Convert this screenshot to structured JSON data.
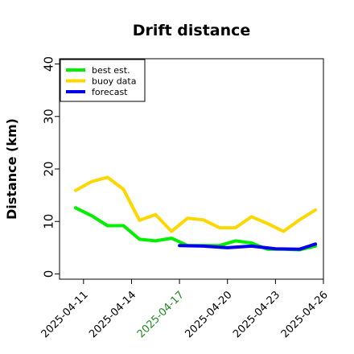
{
  "chart_data": {
    "type": "line",
    "title": "Drift distance",
    "ylabel": "Distance (km)",
    "xlabel": "",
    "ylim": [
      -1,
      41
    ],
    "yticks": [
      0,
      10,
      20,
      30,
      40
    ],
    "xlim": [
      "2025-04-09T12:00",
      "2025-04-26T00:00"
    ],
    "xticks": [
      "2025-04-11",
      "2025-04-14",
      "2025-04-17",
      "2025-04-20",
      "2025-04-23",
      "2025-04-26"
    ],
    "highlighted_xtick": "2025-04-17",
    "highlight_color": "#228B22",
    "grid": false,
    "legend_position": "top-left",
    "series": [
      {
        "name": "best est.",
        "color": "#00ee00",
        "x": [
          "2025-04-10T12:00",
          "2025-04-11T12:00",
          "2025-04-12T12:00",
          "2025-04-13T12:00",
          "2025-04-14T12:00",
          "2025-04-15T12:00",
          "2025-04-16T12:00",
          "2025-04-17T12:00",
          "2025-04-18T12:00",
          "2025-04-19T12:00",
          "2025-04-20T12:00",
          "2025-04-21T12:00",
          "2025-04-22T12:00",
          "2025-04-23T12:00",
          "2025-04-24T12:00",
          "2025-04-25T12:00"
        ],
        "y": [
          12.6,
          11.1,
          9.2,
          9.2,
          6.6,
          6.3,
          6.8,
          5.4,
          5.4,
          5.4,
          6.3,
          5.9,
          4.7,
          4.7,
          4.6,
          5.3
        ]
      },
      {
        "name": "buoy data",
        "color": "#ffd700",
        "x": [
          "2025-04-10T12:00",
          "2025-04-11T12:00",
          "2025-04-12T12:00",
          "2025-04-13T12:00",
          "2025-04-14T12:00",
          "2025-04-15T12:00",
          "2025-04-16T12:00",
          "2025-04-17T12:00",
          "2025-04-18T12:00",
          "2025-04-19T12:00",
          "2025-04-20T12:00",
          "2025-04-21T12:00",
          "2025-04-22T12:00",
          "2025-04-23T12:00",
          "2025-04-24T12:00",
          "2025-04-25T12:00"
        ],
        "y": [
          15.9,
          17.6,
          18.4,
          16.1,
          10.2,
          11.3,
          8.1,
          10.6,
          10.3,
          8.8,
          8.8,
          10.9,
          9.6,
          8.1,
          10.3,
          12.2
        ]
      },
      {
        "name": "forecast",
        "color": "#0000ee",
        "x": [
          "2025-04-17T00:00",
          "2025-04-18T12:00",
          "2025-04-20T00:00",
          "2025-04-21T12:00",
          "2025-04-23T00:00",
          "2025-04-24T12:00",
          "2025-04-25T12:00"
        ],
        "y": [
          5.4,
          5.3,
          5.0,
          5.3,
          4.8,
          4.7,
          5.7
        ]
      }
    ]
  }
}
